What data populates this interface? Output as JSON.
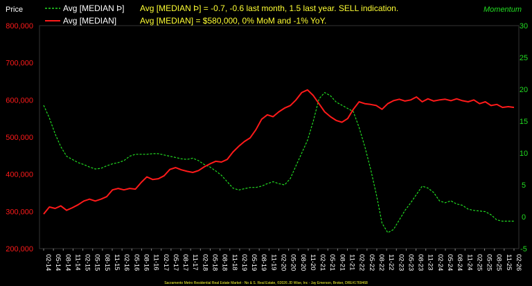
{
  "chart_data": {
    "type": "line",
    "ylabel_left": "Price",
    "ylabel_right": "Momentum",
    "left_ticks": [
      "800,000",
      "700,000",
      "600,000",
      "500,000",
      "400,000",
      "300,000",
      "200,000"
    ],
    "left_tick_values": [
      800000,
      700000,
      600000,
      500000,
      400000,
      300000,
      200000
    ],
    "right_ticks": [
      "30",
      "25",
      "20",
      "15",
      "10",
      "5",
      "0",
      "-5"
    ],
    "right_tick_values": [
      30,
      25,
      20,
      15,
      10,
      5,
      0,
      -5
    ],
    "ylim_left": [
      200000,
      800000
    ],
    "ylim_right": [
      -5,
      30
    ],
    "x_labels": [
      "02-14",
      "05-14",
      "08-14",
      "11-14",
      "02-15",
      "05-15",
      "08-15",
      "11-15",
      "02-16",
      "05-16",
      "08-16",
      "11-16",
      "02-17",
      "05-17",
      "08-17",
      "11-17",
      "02-18",
      "05-18",
      "08-18",
      "11-18",
      "02-19",
      "05-19",
      "08-19",
      "11-19",
      "02-20",
      "05-20",
      "08-20",
      "11-20",
      "02-21",
      "05-21",
      "08-21",
      "11-21",
      "02-22",
      "05-22",
      "08-22",
      "11-22",
      "02-23",
      "05-23",
      "08-23",
      "11-23",
      "02-24",
      "05-24",
      "08-24",
      "11-24",
      "02-25",
      "05-25",
      "08-25",
      "11-25",
      "02-26"
    ],
    "legend": [
      {
        "name": "Avg [MEDIAN Þ]",
        "color": "#22dd22",
        "dashed": true
      },
      {
        "name": "Avg [MEDIAN]",
        "color": "#ff1a1a",
        "dashed": false
      }
    ],
    "annotations": [
      "Avg [MEDIAN Þ] = -0.7, -0.6 last month, 1.5 last year. SELL indication.",
      "Avg [MEDIAN] = $580,000, 0% MoM and -1% YoY."
    ],
    "footer": "Sacramento Metro Residential Real Estate Market - No & S. Real Estate, ©2026 JD Wise, Inc - Jay Emerson, Broker, DRE#1769468",
    "grid": false,
    "series": [
      {
        "name": "Avg [MEDIAN]",
        "axis": "left",
        "values": [
          293000,
          312000,
          308000,
          315000,
          303000,
          310000,
          318000,
          328000,
          333000,
          328000,
          333000,
          340000,
          358000,
          362000,
          358000,
          362000,
          360000,
          378000,
          393000,
          386000,
          388000,
          396000,
          413000,
          418000,
          412000,
          408000,
          405000,
          410000,
          420000,
          428000,
          435000,
          433000,
          440000,
          460000,
          475000,
          488000,
          498000,
          520000,
          548000,
          560000,
          555000,
          568000,
          578000,
          585000,
          600000,
          620000,
          627000,
          612000,
          590000,
          568000,
          555000,
          545000,
          540000,
          550000,
          575000,
          595000,
          590000,
          588000,
          585000,
          575000,
          590000,
          598000,
          602000,
          597000,
          600000,
          608000,
          595000,
          603000,
          597000,
          600000,
          602000,
          598000,
          603000,
          598000,
          595000,
          600000,
          590000,
          595000,
          585000,
          588000,
          580000,
          582000,
          580000
        ]
      },
      {
        "name": "Avg [MEDIAN Þ]",
        "axis": "right",
        "values": [
          17.5,
          15.5,
          13.0,
          11.0,
          9.5,
          9.0,
          8.5,
          8.2,
          7.8,
          7.5,
          7.6,
          8.0,
          8.3,
          8.5,
          8.8,
          9.5,
          9.8,
          9.8,
          9.8,
          9.9,
          9.9,
          9.7,
          9.5,
          9.3,
          9.1,
          9.0,
          9.2,
          8.8,
          8.2,
          7.8,
          7.2,
          6.5,
          5.5,
          4.5,
          4.2,
          4.4,
          4.6,
          4.6,
          4.8,
          5.2,
          5.5,
          5.2,
          5.0,
          6.0,
          8.0,
          10.0,
          12.0,
          15.0,
          18.5,
          19.5,
          19.0,
          18.0,
          17.5,
          17.0,
          16.5,
          14.0,
          11.0,
          7.5,
          3.5,
          -1.0,
          -2.5,
          -2.0,
          -0.5,
          1.0,
          2.2,
          3.5,
          4.8,
          4.5,
          3.8,
          2.5,
          2.2,
          2.5,
          2.0,
          1.8,
          1.2,
          1.0,
          0.9,
          0.8,
          0.3,
          -0.5,
          -0.7,
          -0.7,
          -0.7
        ]
      }
    ]
  }
}
